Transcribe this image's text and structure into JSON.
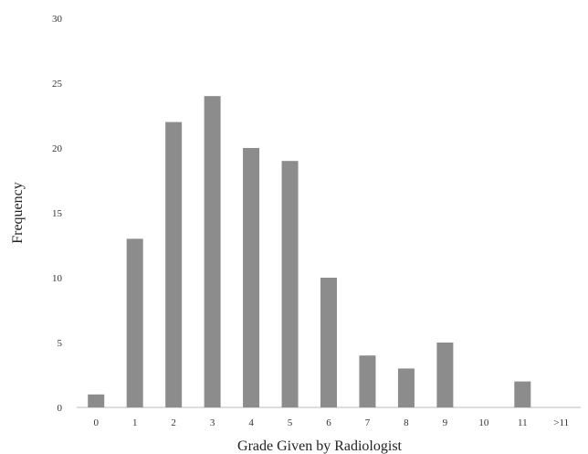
{
  "chart_data": {
    "type": "bar",
    "title": "",
    "xlabel": "Grade Given by Radiologist",
    "ylabel": "Frequency",
    "categories": [
      "0",
      "1",
      "2",
      "3",
      "4",
      "5",
      "6",
      "7",
      "8",
      "9",
      "10",
      "11",
      ">11"
    ],
    "values": [
      1,
      13,
      22,
      24,
      20,
      19,
      10,
      4,
      3,
      5,
      0,
      2,
      0
    ],
    "ylim": [
      0,
      30
    ],
    "yticks": [
      "0",
      "5",
      "10",
      "15",
      "20",
      "25",
      "30"
    ],
    "grid": false,
    "bar_color": "#8c8c8c",
    "axis_color": "#bbbbbb"
  }
}
